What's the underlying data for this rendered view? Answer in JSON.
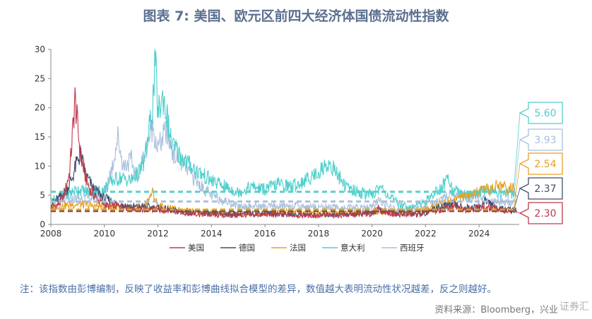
{
  "title": "图表 7:  美国、欧元区前四大经济体国债流动性指数",
  "note": "注：该指数由彭博编制，反映了收益率和彭博曲线拟合模型的差异，数值越大表明流动性状况越差，反之则越好。",
  "source": "资料来源：Bloomberg，兴业",
  "watermark": "证券汇",
  "chart_data": {
    "type": "line",
    "x_ticks": [
      "2008",
      "2010",
      "2012",
      "2014",
      "2016",
      "2018",
      "2020",
      "2022",
      "2024"
    ],
    "y_ticks": [
      "0",
      "5",
      "10",
      "15",
      "20",
      "25",
      "30"
    ],
    "xlim": [
      2008,
      2025.5
    ],
    "ylim": [
      0,
      30
    ],
    "grid": false,
    "legend_position": "bottom",
    "series": [
      {
        "name": "美国",
        "color": "#c0394b",
        "avg": 2.3,
        "points": [
          [
            2008.0,
            2.8
          ],
          [
            2008.3,
            3.5
          ],
          [
            2008.5,
            5.0
          ],
          [
            2008.7,
            9.0
          ],
          [
            2008.8,
            15.0
          ],
          [
            2008.9,
            21.5
          ],
          [
            2009.0,
            17.0
          ],
          [
            2009.1,
            12.0
          ],
          [
            2009.3,
            8.0
          ],
          [
            2009.5,
            5.5
          ],
          [
            2009.8,
            4.0
          ],
          [
            2010.2,
            3.0
          ],
          [
            2010.6,
            3.2
          ],
          [
            2011.0,
            2.8
          ],
          [
            2011.5,
            2.5
          ],
          [
            2012.0,
            2.6
          ],
          [
            2012.6,
            2.2
          ],
          [
            2013.0,
            2.0
          ],
          [
            2014.0,
            1.6
          ],
          [
            2015.0,
            1.5
          ],
          [
            2016.0,
            1.7
          ],
          [
            2017.0,
            1.6
          ],
          [
            2018.0,
            1.5
          ],
          [
            2019.0,
            1.6
          ],
          [
            2020.0,
            1.8
          ],
          [
            2020.25,
            3.0
          ],
          [
            2020.4,
            2.2
          ],
          [
            2021.0,
            1.6
          ],
          [
            2021.8,
            1.8
          ],
          [
            2022.0,
            2.0
          ],
          [
            2022.5,
            2.4
          ],
          [
            2023.0,
            3.0
          ],
          [
            2023.5,
            2.6
          ],
          [
            2024.0,
            3.0
          ],
          [
            2024.5,
            2.7
          ],
          [
            2025.0,
            2.4
          ],
          [
            2025.4,
            2.3
          ]
        ]
      },
      {
        "name": "德国",
        "color": "#3f4f6e",
        "avg": 2.37,
        "points": [
          [
            2008.0,
            3.5
          ],
          [
            2008.3,
            4.5
          ],
          [
            2008.6,
            6.0
          ],
          [
            2008.8,
            8.0
          ],
          [
            2009.0,
            11.0
          ],
          [
            2009.1,
            12.0
          ],
          [
            2009.3,
            8.5
          ],
          [
            2009.6,
            6.0
          ],
          [
            2010.0,
            4.5
          ],
          [
            2010.5,
            3.5
          ],
          [
            2011.0,
            3.0
          ],
          [
            2011.5,
            3.0
          ],
          [
            2012.0,
            2.8
          ],
          [
            2012.5,
            2.4
          ],
          [
            2013.0,
            2.2
          ],
          [
            2014.0,
            1.8
          ],
          [
            2015.0,
            1.8
          ],
          [
            2016.0,
            1.9
          ],
          [
            2017.0,
            1.7
          ],
          [
            2018.0,
            1.6
          ],
          [
            2019.0,
            1.8
          ],
          [
            2020.0,
            2.0
          ],
          [
            2020.3,
            2.4
          ],
          [
            2021.0,
            1.8
          ],
          [
            2022.0,
            2.0
          ],
          [
            2022.5,
            3.0
          ],
          [
            2023.0,
            3.5
          ],
          [
            2023.5,
            2.8
          ],
          [
            2024.0,
            2.9
          ],
          [
            2024.3,
            4.3
          ],
          [
            2024.6,
            2.9
          ],
          [
            2025.0,
            2.5
          ],
          [
            2025.4,
            2.4
          ]
        ]
      },
      {
        "name": "法国",
        "color": "#e6a023",
        "avg": 2.54,
        "points": [
          [
            2008.0,
            3.0
          ],
          [
            2008.5,
            3.2
          ],
          [
            2009.0,
            3.5
          ],
          [
            2009.5,
            3.2
          ],
          [
            2010.0,
            3.0
          ],
          [
            2010.5,
            3.0
          ],
          [
            2011.0,
            2.8
          ],
          [
            2011.5,
            3.2
          ],
          [
            2011.8,
            5.5
          ],
          [
            2012.0,
            3.2
          ],
          [
            2012.5,
            2.6
          ],
          [
            2013.0,
            2.4
          ],
          [
            2014.0,
            2.0
          ],
          [
            2015.0,
            1.8
          ],
          [
            2016.0,
            1.9
          ],
          [
            2017.0,
            2.2
          ],
          [
            2018.0,
            2.0
          ],
          [
            2019.0,
            1.9
          ],
          [
            2020.0,
            2.1
          ],
          [
            2021.0,
            2.0
          ],
          [
            2022.0,
            2.5
          ],
          [
            2022.5,
            3.5
          ],
          [
            2023.0,
            4.2
          ],
          [
            2023.5,
            4.8
          ],
          [
            2024.0,
            5.5
          ],
          [
            2024.5,
            6.2
          ],
          [
            2024.8,
            6.8
          ],
          [
            2025.0,
            6.3
          ],
          [
            2025.3,
            6.0
          ],
          [
            2025.4,
            5.8
          ]
        ]
      },
      {
        "name": "意大利",
        "color": "#4fcfcc",
        "avg": 5.6,
        "points": [
          [
            2008.0,
            4.0
          ],
          [
            2008.5,
            5.0
          ],
          [
            2009.0,
            6.0
          ],
          [
            2009.5,
            5.5
          ],
          [
            2010.0,
            6.0
          ],
          [
            2010.3,
            7.5
          ],
          [
            2010.6,
            8.0
          ],
          [
            2011.0,
            7.5
          ],
          [
            2011.3,
            9.0
          ],
          [
            2011.5,
            11.0
          ],
          [
            2011.8,
            20.0
          ],
          [
            2011.9,
            28.0
          ],
          [
            2012.0,
            19.0
          ],
          [
            2012.2,
            22.0
          ],
          [
            2012.5,
            14.0
          ],
          [
            2012.8,
            12.0
          ],
          [
            2013.0,
            11.0
          ],
          [
            2013.5,
            9.0
          ],
          [
            2014.0,
            7.5
          ],
          [
            2014.5,
            6.5
          ],
          [
            2015.0,
            5.5
          ],
          [
            2015.5,
            6.5
          ],
          [
            2016.0,
            6.0
          ],
          [
            2016.5,
            7.0
          ],
          [
            2017.0,
            6.5
          ],
          [
            2017.5,
            7.5
          ],
          [
            2018.0,
            9.0
          ],
          [
            2018.4,
            10.5
          ],
          [
            2018.8,
            8.0
          ],
          [
            2019.0,
            6.5
          ],
          [
            2019.5,
            5.5
          ],
          [
            2020.0,
            5.0
          ],
          [
            2020.3,
            6.5
          ],
          [
            2020.7,
            4.5
          ],
          [
            2021.0,
            3.5
          ],
          [
            2021.5,
            3.0
          ],
          [
            2022.0,
            4.0
          ],
          [
            2022.5,
            6.0
          ],
          [
            2022.9,
            8.0
          ],
          [
            2023.0,
            6.0
          ],
          [
            2023.5,
            5.0
          ],
          [
            2024.0,
            5.5
          ],
          [
            2024.5,
            5.8
          ],
          [
            2025.0,
            5.2
          ],
          [
            2025.4,
            5.6
          ]
        ]
      },
      {
        "name": "西班牙",
        "color": "#a8bfdc",
        "avg": 3.93,
        "points": [
          [
            2008.0,
            3.5
          ],
          [
            2008.5,
            4.0
          ],
          [
            2009.0,
            4.5
          ],
          [
            2009.5,
            4.5
          ],
          [
            2010.0,
            5.5
          ],
          [
            2010.3,
            10.0
          ],
          [
            2010.5,
            15.0
          ],
          [
            2010.7,
            10.0
          ],
          [
            2011.0,
            11.0
          ],
          [
            2011.2,
            8.0
          ],
          [
            2011.5,
            12.0
          ],
          [
            2011.8,
            17.0
          ],
          [
            2012.0,
            13.0
          ],
          [
            2012.3,
            16.0
          ],
          [
            2012.6,
            12.0
          ],
          [
            2013.0,
            10.0
          ],
          [
            2013.5,
            7.0
          ],
          [
            2014.0,
            5.0
          ],
          [
            2014.5,
            4.0
          ],
          [
            2015.0,
            3.2
          ],
          [
            2016.0,
            3.0
          ],
          [
            2017.0,
            3.2
          ],
          [
            2018.0,
            3.0
          ],
          [
            2019.0,
            2.8
          ],
          [
            2020.0,
            2.9
          ],
          [
            2020.3,
            4.2
          ],
          [
            2020.7,
            2.8
          ],
          [
            2021.0,
            2.5
          ],
          [
            2022.0,
            3.0
          ],
          [
            2022.5,
            4.0
          ],
          [
            2023.0,
            5.5
          ],
          [
            2023.5,
            4.8
          ],
          [
            2024.0,
            4.3
          ],
          [
            2024.5,
            4.0
          ],
          [
            2025.0,
            3.8
          ],
          [
            2025.4,
            3.9
          ]
        ]
      }
    ]
  }
}
